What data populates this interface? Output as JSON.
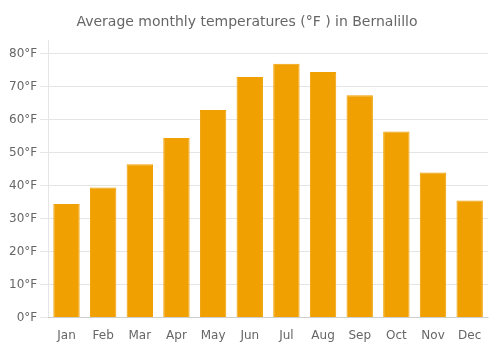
{
  "chart_data": {
    "type": "bar",
    "title": "Average monthly temperatures (°F ) in Bernalillo",
    "categories": [
      "Jan",
      "Feb",
      "Mar",
      "Apr",
      "May",
      "Jun",
      "Jul",
      "Aug",
      "Sep",
      "Oct",
      "Nov",
      "Dec"
    ],
    "values": [
      34.5,
      39.5,
      46.5,
      54.5,
      63.0,
      73.0,
      77.0,
      74.5,
      67.5,
      56.5,
      44.0,
      35.5
    ],
    "color": "#F0A000",
    "ylim": [
      0,
      84
    ],
    "yticks": [
      {
        "value": 0,
        "label": "0°F"
      },
      {
        "value": 10,
        "label": "10°F"
      },
      {
        "value": 20,
        "label": "20°F"
      },
      {
        "value": 30,
        "label": "30°F"
      },
      {
        "value": 40,
        "label": "40°F"
      },
      {
        "value": 50,
        "label": "50°F"
      },
      {
        "value": 60,
        "label": "60°F"
      },
      {
        "value": 70,
        "label": "70°F"
      },
      {
        "value": 80,
        "label": "80°F"
      }
    ],
    "grid": true
  }
}
